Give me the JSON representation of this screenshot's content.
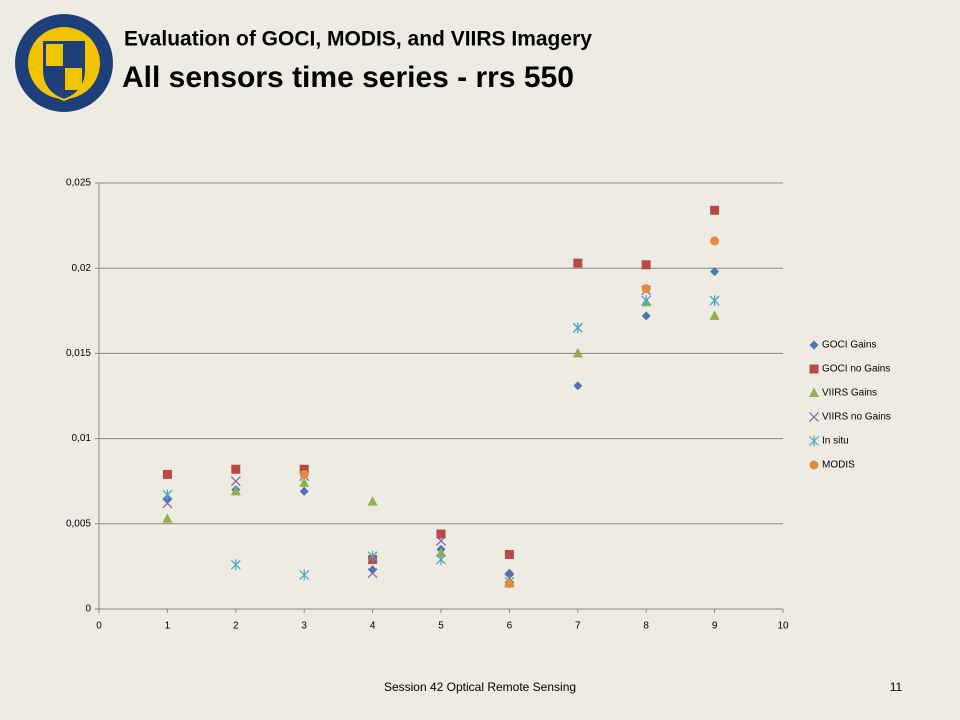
{
  "slide": {
    "title": "Evaluation of GOCI, MODIS, and VIIRS Imagery",
    "subtitle": "All sensors time series - rrs 550",
    "footer": "Session 42 Optical Remote Sensing",
    "page": "11"
  },
  "chart_data": {
    "type": "scatter",
    "x": [
      1,
      2,
      3,
      4,
      5,
      6,
      7,
      8,
      9
    ],
    "series": [
      {
        "name": "GOCI Gains",
        "color": "#4a76b8",
        "marker": "diamond",
        "values": [
          0.0065,
          0.007,
          0.0069,
          0.0023,
          0.0035,
          0.0021,
          0.0131,
          0.0172,
          0.0198
        ]
      },
      {
        "name": "GOCI no Gains",
        "color": "#b84a47",
        "marker": "square",
        "values": [
          0.0079,
          0.0082,
          0.0082,
          0.0029,
          0.0044,
          0.0032,
          0.0203,
          0.0202,
          0.0234
        ]
      },
      {
        "name": "VIIRS Gains",
        "color": "#8fb04c",
        "marker": "triangle",
        "values": [
          0.0053,
          0.0069,
          0.0074,
          0.0063,
          0.0033,
          0.0015,
          0.015,
          0.018,
          0.0172
        ]
      },
      {
        "name": "VIIRS no Gains",
        "color": "#7b64a0",
        "marker": "x",
        "values": [
          0.0062,
          0.0075,
          0.0078,
          0.0021,
          0.004,
          0.0018,
          0.0165,
          0.0187,
          0.0181
        ]
      },
      {
        "name": "In situ",
        "color": "#4aa6c4",
        "marker": "star",
        "values": [
          0.0067,
          0.0026,
          0.002,
          0.0031,
          0.0029,
          0.0016,
          0.0165,
          0.0181,
          0.0181
        ]
      },
      {
        "name": "MODIS",
        "color": "#e48a3c",
        "marker": "circle",
        "values": [
          null,
          null,
          0.0079,
          null,
          null,
          0.0015,
          null,
          0.0188,
          0.0216
        ]
      }
    ],
    "xlim": [
      0,
      10
    ],
    "xticks": [
      0,
      1,
      2,
      3,
      4,
      5,
      6,
      7,
      8,
      9,
      10
    ],
    "ylim": [
      0,
      0.025
    ],
    "yticks": [
      0,
      {
        "value": 0.005,
        "label": "0,005"
      },
      {
        "value": 0.01,
        "label": "0,01"
      },
      {
        "value": 0.015,
        "label": "0,015"
      },
      {
        "value": 0.02,
        "label": "0,02"
      },
      {
        "value": 0.025,
        "label": "0,025"
      }
    ],
    "grid": true,
    "legend": "right"
  }
}
